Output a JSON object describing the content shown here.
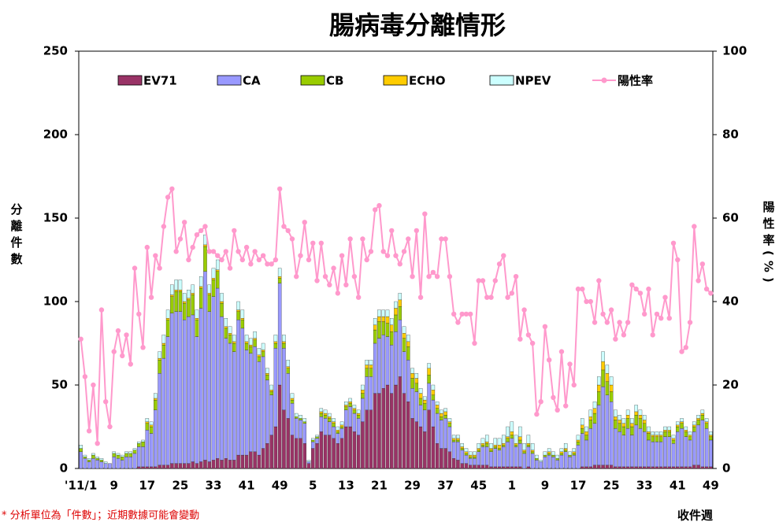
{
  "chart_data": {
    "type": "bar",
    "stacked": true,
    "title": "腸病毒分離情形",
    "ylabel": "分離件數",
    "y2label": "陽性率(%)",
    "xlabel": "收件週",
    "footnote": "* 分析單位為「件數」；近期數據可能會變動",
    "ylim": [
      0,
      250
    ],
    "yticks": [
      0,
      50,
      100,
      150,
      200,
      250
    ],
    "y2lim": [
      0,
      100
    ],
    "y2ticks": [
      0,
      20,
      40,
      60,
      80,
      100
    ],
    "categories": [
      "'11/1",
      null,
      null,
      null,
      null,
      null,
      null,
      null,
      "9",
      null,
      null,
      null,
      null,
      null,
      null,
      null,
      "17",
      null,
      null,
      null,
      null,
      null,
      null,
      null,
      "25",
      null,
      null,
      null,
      null,
      null,
      null,
      null,
      "33",
      null,
      null,
      null,
      null,
      null,
      null,
      null,
      "41",
      null,
      null,
      null,
      null,
      null,
      null,
      null,
      "49",
      null,
      null,
      null,
      null,
      null,
      null,
      null,
      "5",
      null,
      null,
      null,
      null,
      null,
      null,
      null,
      "13",
      null,
      null,
      null,
      null,
      null,
      null,
      null,
      "21",
      null,
      null,
      null,
      null,
      null,
      null,
      null,
      "29",
      null,
      null,
      null,
      null,
      null,
      null,
      null,
      "37",
      null,
      null,
      null,
      null,
      null,
      null,
      null,
      "45",
      null,
      null,
      null,
      null,
      null,
      null,
      null,
      "1",
      null,
      null,
      null,
      null,
      null,
      null,
      null,
      "9",
      null,
      null,
      null,
      null,
      null,
      null,
      null,
      "17",
      null,
      null,
      null,
      null,
      null,
      null,
      null,
      "25",
      null,
      null,
      null,
      null,
      null,
      null,
      null,
      "33",
      null,
      null,
      null,
      null,
      null,
      null,
      null,
      "41",
      null,
      null,
      null,
      null,
      null,
      null,
      null,
      "49"
    ],
    "series": [
      {
        "name": "EV71",
        "color": "#993366",
        "values": [
          0,
          0,
          0,
          0,
          0,
          0,
          0,
          0,
          0,
          0,
          0,
          0,
          0,
          0,
          1,
          1,
          1,
          1,
          1,
          2,
          2,
          2,
          3,
          3,
          3,
          3,
          3,
          4,
          3,
          4,
          5,
          4,
          5,
          6,
          5,
          6,
          5,
          5,
          8,
          8,
          8,
          10,
          10,
          8,
          12,
          15,
          20,
          25,
          50,
          35,
          30,
          20,
          18,
          18,
          15,
          3,
          12,
          15,
          22,
          20,
          20,
          18,
          15,
          18,
          25,
          25,
          22,
          20,
          28,
          35,
          35,
          45,
          45,
          48,
          50,
          45,
          50,
          55,
          45,
          40,
          30,
          28,
          25,
          22,
          35,
          25,
          15,
          12,
          12,
          10,
          6,
          5,
          3,
          3,
          2,
          2,
          2,
          2,
          2,
          1,
          1,
          1,
          1,
          1,
          1,
          1,
          1,
          0,
          1,
          0,
          0,
          0,
          0,
          0,
          0,
          0,
          0,
          0,
          0,
          0,
          0,
          1,
          1,
          1,
          2,
          2,
          2,
          2,
          2,
          1,
          1,
          1,
          1,
          1,
          1,
          1,
          1,
          1,
          1,
          1,
          1,
          1,
          1,
          1,
          1,
          1,
          1,
          1,
          2,
          2,
          1,
          1,
          1
        ]
      },
      {
        "name": "CA",
        "color": "#9999ff",
        "values": [
          10,
          6,
          4,
          6,
          5,
          4,
          3,
          3,
          7,
          6,
          5,
          7,
          7,
          9,
          12,
          12,
          22,
          20,
          34,
          55,
          64,
          77,
          90,
          91,
          91,
          86,
          88,
          88,
          76,
          92,
          113,
          90,
          98,
          102,
          86,
          72,
          70,
          65,
          81,
          76,
          63,
          59,
          63,
          56,
          55,
          38,
          24,
          47,
          61,
          37,
          27,
          19,
          12,
          11,
          12,
          1,
          4,
          3,
          9,
          10,
          8,
          7,
          6,
          6,
          10,
          12,
          11,
          10,
          14,
          20,
          20,
          30,
          33,
          32,
          29,
          29,
          32,
          34,
          25,
          25,
          18,
          18,
          13,
          13,
          16,
          16,
          18,
          17,
          18,
          15,
          10,
          11,
          8,
          5,
          4,
          4,
          8,
          11,
          11,
          9,
          11,
          10,
          12,
          15,
          17,
          12,
          14,
          9,
          12,
          9,
          5,
          4,
          7,
          8,
          7,
          5,
          8,
          10,
          7,
          8,
          14,
          20,
          16,
          23,
          25,
          36,
          47,
          42,
          38,
          23,
          21,
          19,
          23,
          19,
          25,
          23,
          21,
          16,
          15,
          15,
          15,
          18,
          18,
          14,
          21,
          23,
          18,
          16,
          20,
          24,
          28,
          23,
          16
        ]
      },
      {
        "name": "CB",
        "color": "#99cc00",
        "values": [
          2,
          1,
          1,
          2,
          1,
          1,
          0,
          0,
          2,
          2,
          2,
          2,
          2,
          2,
          2,
          3,
          4,
          4,
          6,
          8,
          8,
          10,
          10,
          12,
          12,
          10,
          10,
          12,
          10,
          12,
          15,
          10,
          10,
          10,
          8,
          6,
          5,
          5,
          5,
          5,
          4,
          4,
          4,
          3,
          3,
          3,
          2,
          3,
          3,
          3,
          3,
          2,
          1,
          1,
          1,
          0,
          1,
          1,
          2,
          2,
          2,
          2,
          1,
          1,
          2,
          2,
          2,
          2,
          3,
          5,
          5,
          8,
          10,
          8,
          8,
          8,
          10,
          8,
          8,
          8,
          6,
          5,
          4,
          4,
          5,
          3,
          3,
          2,
          2,
          2,
          1,
          1,
          1,
          1,
          1,
          1,
          1,
          1,
          2,
          1,
          1,
          1,
          1,
          2,
          2,
          1,
          2,
          1,
          1,
          1,
          1,
          0,
          1,
          1,
          1,
          1,
          1,
          1,
          1,
          1,
          2,
          3,
          3,
          5,
          6,
          8,
          10,
          8,
          6,
          5,
          5,
          5,
          6,
          5,
          6,
          6,
          5,
          4,
          3,
          3,
          3,
          3,
          3,
          2,
          3,
          3,
          3,
          2,
          3,
          3,
          3,
          3,
          2
        ]
      },
      {
        "name": "ECHO",
        "color": "#ffcc00",
        "values": [
          0,
          0,
          0,
          0,
          0,
          0,
          0,
          0,
          0,
          0,
          0,
          0,
          0,
          0,
          0,
          0,
          1,
          1,
          1,
          1,
          1,
          1,
          1,
          1,
          1,
          1,
          1,
          1,
          1,
          1,
          1,
          1,
          1,
          1,
          1,
          1,
          1,
          1,
          1,
          1,
          1,
          1,
          1,
          1,
          1,
          1,
          1,
          1,
          1,
          1,
          1,
          1,
          0,
          0,
          0,
          0,
          0,
          0,
          1,
          1,
          1,
          1,
          1,
          1,
          1,
          1,
          1,
          1,
          2,
          2,
          2,
          3,
          3,
          3,
          4,
          4,
          4,
          4,
          3,
          3,
          3,
          3,
          3,
          2,
          4,
          3,
          2,
          2,
          2,
          1,
          1,
          1,
          1,
          1,
          1,
          1,
          1,
          1,
          1,
          1,
          1,
          2,
          1,
          1,
          2,
          1,
          2,
          1,
          1,
          1,
          0,
          0,
          0,
          1,
          0,
          0,
          1,
          1,
          0,
          1,
          1,
          2,
          2,
          2,
          3,
          4,
          5,
          5,
          4,
          2,
          2,
          2,
          2,
          2,
          2,
          2,
          2,
          1,
          1,
          1,
          1,
          1,
          1,
          1,
          1,
          1,
          1,
          1,
          1,
          1,
          1,
          1,
          1
        ]
      },
      {
        "name": "NPEV",
        "color": "#ccffff",
        "values": [
          2,
          1,
          1,
          1,
          1,
          1,
          1,
          0,
          1,
          1,
          1,
          1,
          1,
          1,
          1,
          1,
          2,
          2,
          3,
          4,
          5,
          5,
          6,
          6,
          6,
          5,
          5,
          5,
          5,
          6,
          6,
          5,
          6,
          6,
          5,
          5,
          4,
          4,
          5,
          5,
          4,
          4,
          4,
          4,
          4,
          3,
          3,
          4,
          5,
          4,
          4,
          3,
          2,
          2,
          2,
          1,
          1,
          1,
          2,
          2,
          2,
          2,
          2,
          2,
          2,
          2,
          2,
          2,
          3,
          3,
          3,
          4,
          4,
          4,
          4,
          4,
          4,
          4,
          4,
          4,
          3,
          3,
          3,
          2,
          3,
          3,
          2,
          2,
          2,
          2,
          2,
          2,
          2,
          2,
          2,
          2,
          3,
          3,
          4,
          3,
          4,
          4,
          5,
          6,
          6,
          5,
          6,
          4,
          5,
          4,
          2,
          1,
          2,
          2,
          2,
          2,
          2,
          3,
          2,
          2,
          3,
          4,
          3,
          4,
          4,
          5,
          6,
          5,
          5,
          4,
          3,
          3,
          3,
          3,
          4,
          3,
          3,
          3,
          2,
          2,
          2,
          2,
          2,
          2,
          2,
          2,
          2,
          2,
          2,
          2,
          2,
          2,
          2
        ]
      },
      {
        "name": "陽性率",
        "color": "#ff99cc",
        "axis": "y2",
        "values": [
          31,
          22,
          9,
          20,
          6,
          38,
          16,
          10,
          28,
          33,
          27,
          32,
          25,
          48,
          37,
          29,
          53,
          41,
          51,
          48,
          58,
          65,
          67,
          52,
          55,
          59,
          50,
          53,
          56,
          57,
          58,
          52,
          52,
          51,
          50,
          52,
          48,
          57,
          52,
          50,
          53,
          49,
          52,
          50,
          51,
          49,
          49,
          50,
          67,
          58,
          57,
          55,
          46,
          51,
          59,
          50,
          54,
          45,
          54,
          46,
          44,
          48,
          42,
          51,
          44,
          55,
          46,
          41,
          55,
          50,
          52,
          62,
          63,
          52,
          51,
          57,
          51,
          49,
          52,
          55,
          46,
          57,
          41,
          61,
          46,
          47,
          46,
          55,
          55,
          46,
          37,
          35,
          37,
          37,
          37,
          30,
          45,
          45,
          41,
          41,
          45,
          49,
          51,
          41,
          42,
          46,
          31,
          38,
          32,
          30,
          13,
          16,
          34,
          26,
          17,
          14,
          28,
          15,
          25,
          20,
          43,
          43,
          40,
          40,
          35,
          45,
          37,
          35,
          38,
          31,
          35,
          32,
          35,
          44,
          43,
          42,
          37,
          43,
          32,
          37,
          36,
          41,
          36,
          54,
          50,
          28,
          29,
          35,
          58,
          45,
          49,
          43,
          42
        ]
      }
    ]
  }
}
